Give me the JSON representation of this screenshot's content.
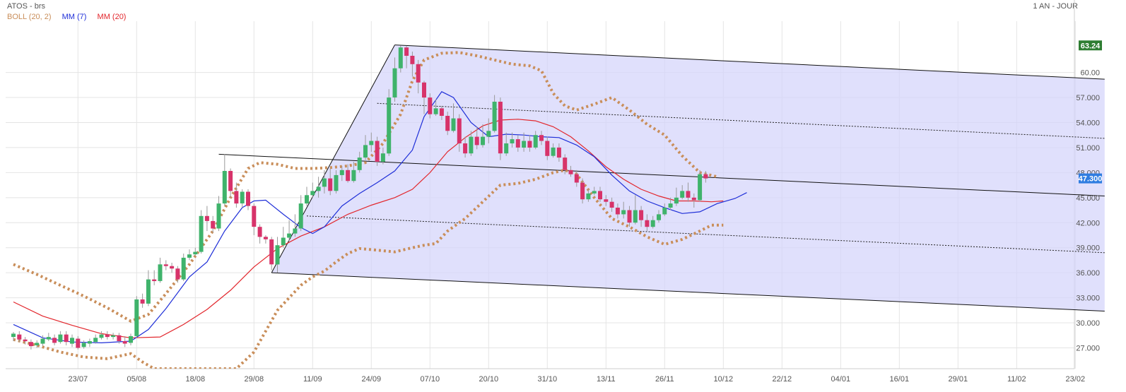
{
  "header": {
    "ticker": "ATOS - brs",
    "period": "1 AN - JOUR"
  },
  "legend": [
    {
      "label": "BOLL (20, 2)",
      "color": "#c98e5a"
    },
    {
      "label": "MM (7)",
      "color": "#1f2fd8"
    },
    {
      "label": "MM (20)",
      "color": "#e2262c"
    }
  ],
  "price_badges": {
    "high": {
      "label": "63.24",
      "value": 63.24,
      "color": "#2e7d32"
    },
    "last": {
      "label": "47.300",
      "value": 47.3,
      "color": "#2f7de1"
    }
  },
  "chart_data": {
    "type": "candlestick",
    "ylim": [
      24.5,
      65.3
    ],
    "y_ticks": [
      27,
      30,
      33,
      36,
      39,
      42,
      45,
      48,
      51,
      54,
      57,
      60
    ],
    "y_tick_labels": [
      "27.000",
      "30.000",
      "33.000",
      "36.000",
      "39.000",
      "42.000",
      "45.000",
      "48.000",
      "51.000",
      "54.000",
      "57.000",
      "60.00"
    ],
    "x_ticks": [
      {
        "label": "23/07",
        "i": 11
      },
      {
        "label": "05/08",
        "i": 21
      },
      {
        "label": "18/08",
        "i": 31
      },
      {
        "label": "29/08",
        "i": 41
      },
      {
        "label": "11/09",
        "i": 51
      },
      {
        "label": "24/09",
        "i": 61
      },
      {
        "label": "07/10",
        "i": 71
      },
      {
        "label": "20/10",
        "i": 81
      },
      {
        "label": "31/10",
        "i": 91
      },
      {
        "label": "13/11",
        "i": 101
      },
      {
        "label": "26/11",
        "i": 111
      },
      {
        "label": "10/12",
        "i": 121
      },
      {
        "label": "22/12",
        "i": 131
      },
      {
        "label": "04/01",
        "i": 141
      },
      {
        "label": "16/01",
        "i": 151
      },
      {
        "label": "29/01",
        "i": 161
      },
      {
        "label": "11/02",
        "i": 171
      },
      {
        "label": "23/02",
        "i": 181
      }
    ],
    "candles": [
      [
        28.3,
        28.7,
        27.8,
        28.9
      ],
      [
        28.6,
        28.0,
        27.7,
        29.0
      ],
      [
        28.0,
        27.8,
        27.4,
        28.3
      ],
      [
        27.7,
        27.2,
        26.8,
        28.0
      ],
      [
        27.3,
        27.6,
        27.0,
        27.9
      ],
      [
        27.5,
        28.1,
        27.2,
        28.5
      ],
      [
        28.0,
        28.3,
        27.8,
        28.8
      ],
      [
        28.2,
        27.6,
        27.3,
        28.6
      ],
      [
        27.7,
        28.6,
        27.5,
        29.0
      ],
      [
        28.6,
        27.7,
        27.3,
        29.0
      ],
      [
        27.5,
        28.2,
        27.1,
        28.6
      ],
      [
        28.1,
        27.0,
        26.8,
        28.4
      ],
      [
        27.1,
        27.6,
        26.9,
        27.9
      ],
      [
        27.5,
        27.8,
        27.1,
        28.1
      ],
      [
        27.7,
        28.2,
        27.5,
        28.6
      ],
      [
        28.2,
        28.6,
        28.0,
        29.0
      ],
      [
        28.6,
        28.3,
        28.0,
        29.0
      ],
      [
        28.3,
        28.5,
        28.0,
        28.8
      ],
      [
        28.5,
        27.8,
        27.5,
        28.8
      ],
      [
        27.8,
        27.5,
        27.1,
        28.4
      ],
      [
        27.6,
        28.4,
        27.3,
        28.7
      ],
      [
        28.4,
        32.8,
        28.2,
        33.2
      ],
      [
        32.8,
        32.3,
        31.8,
        33.5
      ],
      [
        32.3,
        35.2,
        32.0,
        36.3
      ],
      [
        35.2,
        35.0,
        34.5,
        36.3
      ],
      [
        35.0,
        37.0,
        34.8,
        37.8
      ],
      [
        37.0,
        36.8,
        36.3,
        37.5
      ],
      [
        36.8,
        36.5,
        36.0,
        37.2
      ],
      [
        36.5,
        35.2,
        34.8,
        36.8
      ],
      [
        35.2,
        37.8,
        35.0,
        38.3
      ],
      [
        37.8,
        38.2,
        37.5,
        38.8
      ],
      [
        38.2,
        38.5,
        38.0,
        39.0
      ],
      [
        38.5,
        42.8,
        38.3,
        43.5
      ],
      [
        42.8,
        42.2,
        41.0,
        44.0
      ],
      [
        42.2,
        41.3,
        40.8,
        42.8
      ],
      [
        41.3,
        44.3,
        41.0,
        45.2
      ],
      [
        44.3,
        48.2,
        44.0,
        50.2
      ],
      [
        48.2,
        45.8,
        45.0,
        48.5
      ],
      [
        45.8,
        44.3,
        43.8,
        46.8
      ],
      [
        44.3,
        45.7,
        43.8,
        46.0
      ],
      [
        45.7,
        44.0,
        43.5,
        46.0
      ],
      [
        44.0,
        41.5,
        40.5,
        44.3
      ],
      [
        41.5,
        40.3,
        39.5,
        41.8
      ],
      [
        40.3,
        40.0,
        39.5,
        40.5
      ],
      [
        40.0,
        37.0,
        36.3,
        40.3
      ],
      [
        37.0,
        39.3,
        36.0,
        40.3
      ],
      [
        39.3,
        40.2,
        39.0,
        41.5
      ],
      [
        40.2,
        40.7,
        39.8,
        42.3
      ],
      [
        40.7,
        41.3,
        40.3,
        43.0
      ],
      [
        41.3,
        44.3,
        41.0,
        45.3
      ],
      [
        44.3,
        45.3,
        44.0,
        46.3
      ],
      [
        45.3,
        45.8,
        45.0,
        46.8
      ],
      [
        45.8,
        46.3,
        45.0,
        47.5
      ],
      [
        46.3,
        47.3,
        45.5,
        48.3
      ],
      [
        47.3,
        45.8,
        45.3,
        48.5
      ],
      [
        45.8,
        47.7,
        45.5,
        48.3
      ],
      [
        47.7,
        48.3,
        47.0,
        48.8
      ],
      [
        48.3,
        47.0,
        46.8,
        49.0
      ],
      [
        47.0,
        48.3,
        46.8,
        49.3
      ],
      [
        48.3,
        49.8,
        48.0,
        50.5
      ],
      [
        49.8,
        51.3,
        49.5,
        52.5
      ],
      [
        51.3,
        51.8,
        50.5,
        52.8
      ],
      [
        51.8,
        49.3,
        48.8,
        52.3
      ],
      [
        49.3,
        50.3,
        49.0,
        51.0
      ],
      [
        50.3,
        57.0,
        50.0,
        58.0
      ],
      [
        57.0,
        60.5,
        56.5,
        61.8
      ],
      [
        60.5,
        63.0,
        60.0,
        63.2
      ],
      [
        63.0,
        62.0,
        60.5,
        63.2
      ],
      [
        62.0,
        61.0,
        59.5,
        62.5
      ],
      [
        61.0,
        58.8,
        57.5,
        61.5
      ],
      [
        58.8,
        57.0,
        55.0,
        59.0
      ],
      [
        57.0,
        55.0,
        54.5,
        57.5
      ],
      [
        55.0,
        55.7,
        54.8,
        56.8
      ],
      [
        55.7,
        54.8,
        54.3,
        56.0
      ],
      [
        54.8,
        53.0,
        52.5,
        55.3
      ],
      [
        53.0,
        54.5,
        52.8,
        56.3
      ],
      [
        54.5,
        51.5,
        50.5,
        55.0
      ],
      [
        51.5,
        50.3,
        49.8,
        52.3
      ],
      [
        50.3,
        52.3,
        50.0,
        53.0
      ],
      [
        52.3,
        51.3,
        50.8,
        53.5
      ],
      [
        51.3,
        52.3,
        51.0,
        53.8
      ],
      [
        52.3,
        53.0,
        51.5,
        54.5
      ],
      [
        53.0,
        56.5,
        52.8,
        57.3
      ],
      [
        56.5,
        50.3,
        49.5,
        57.0
      ],
      [
        50.3,
        51.5,
        50.0,
        52.8
      ],
      [
        51.5,
        52.0,
        51.0,
        52.8
      ],
      [
        52.0,
        51.0,
        50.5,
        52.5
      ],
      [
        51.0,
        51.8,
        50.5,
        52.8
      ],
      [
        51.8,
        51.0,
        50.5,
        52.5
      ],
      [
        51.0,
        52.5,
        50.8,
        53.0
      ],
      [
        52.5,
        51.8,
        51.3,
        53.0
      ],
      [
        51.8,
        50.0,
        49.5,
        52.3
      ],
      [
        50.0,
        51.0,
        49.8,
        51.5
      ],
      [
        51.0,
        49.8,
        49.3,
        51.5
      ],
      [
        49.8,
        48.3,
        47.8,
        50.2
      ],
      [
        48.3,
        47.8,
        47.5,
        48.8
      ],
      [
        47.8,
        46.8,
        46.3,
        48.3
      ],
      [
        46.8,
        44.8,
        44.3,
        47.3
      ],
      [
        44.8,
        45.5,
        44.5,
        46.0
      ],
      [
        45.5,
        45.8,
        45.3,
        46.3
      ],
      [
        45.8,
        44.8,
        44.5,
        46.3
      ],
      [
        44.8,
        44.5,
        44.0,
        45.3
      ],
      [
        44.5,
        43.8,
        43.3,
        45.0
      ],
      [
        43.8,
        43.0,
        42.5,
        44.3
      ],
      [
        43.0,
        43.5,
        42.5,
        44.5
      ],
      [
        43.5,
        42.0,
        41.5,
        44.0
      ],
      [
        42.0,
        43.5,
        41.8,
        45.3
      ],
      [
        43.5,
        42.3,
        41.5,
        44.0
      ],
      [
        42.3,
        41.5,
        41.0,
        43.0
      ],
      [
        41.5,
        42.3,
        41.3,
        42.8
      ],
      [
        42.3,
        43.0,
        42.0,
        43.5
      ],
      [
        43.0,
        43.8,
        42.8,
        44.3
      ],
      [
        43.8,
        44.3,
        43.5,
        45.0
      ],
      [
        44.3,
        45.0,
        44.0,
        46.2
      ],
      [
        45.0,
        45.8,
        44.8,
        46.5
      ],
      [
        45.8,
        45.0,
        44.5,
        46.8
      ],
      [
        45.0,
        44.7,
        43.8,
        45.5
      ],
      [
        44.7,
        47.8,
        44.5,
        48.3
      ],
      [
        47.8,
        47.3,
        46.8,
        48.2
      ]
    ],
    "mm7": [
      [
        0,
        29.8
      ],
      [
        5,
        28.2
      ],
      [
        10,
        27.7
      ],
      [
        15,
        27.6
      ],
      [
        20,
        27.8
      ],
      [
        23,
        29.2
      ],
      [
        26,
        31.7
      ],
      [
        30,
        35.5
      ],
      [
        33,
        37.3
      ],
      [
        36,
        41.0
      ],
      [
        39,
        43.8
      ],
      [
        41,
        44.6
      ],
      [
        43,
        44.7
      ],
      [
        46,
        43.0
      ],
      [
        49,
        41.4
      ],
      [
        51,
        40.7
      ],
      [
        53,
        41.5
      ],
      [
        56,
        44.0
      ],
      [
        59,
        45.5
      ],
      [
        62,
        46.8
      ],
      [
        65,
        48.2
      ],
      [
        68,
        50.7
      ],
      [
        70,
        54.7
      ],
      [
        73,
        57.7
      ],
      [
        75,
        57.0
      ],
      [
        78,
        54.0
      ],
      [
        81,
        52.3
      ],
      [
        84,
        52.6
      ],
      [
        87,
        52.5
      ],
      [
        90,
        52.3
      ],
      [
        93,
        52.2
      ],
      [
        96,
        51.3
      ],
      [
        99,
        49.9
      ],
      [
        102,
        47.7
      ],
      [
        105,
        45.8
      ],
      [
        108,
        44.6
      ],
      [
        111,
        43.8
      ],
      [
        114,
        43.1
      ],
      [
        117,
        43.3
      ],
      [
        120,
        44.3
      ],
      [
        123,
        44.9
      ],
      [
        125,
        45.6
      ]
    ],
    "mm20": [
      [
        0,
        32.5
      ],
      [
        5,
        30.8
      ],
      [
        10,
        29.7
      ],
      [
        15,
        28.7
      ],
      [
        20,
        28.2
      ],
      [
        25,
        28.3
      ],
      [
        29,
        29.8
      ],
      [
        33,
        31.6
      ],
      [
        37,
        33.9
      ],
      [
        41,
        36.7
      ],
      [
        45,
        38.9
      ],
      [
        49,
        40.4
      ],
      [
        53,
        41.5
      ],
      [
        57,
        43.0
      ],
      [
        61,
        44.1
      ],
      [
        65,
        45.0
      ],
      [
        68,
        46.0
      ],
      [
        71,
        48.0
      ],
      [
        74,
        50.5
      ],
      [
        77,
        52.2
      ],
      [
        80,
        53.6
      ],
      [
        83,
        54.3
      ],
      [
        86,
        54.4
      ],
      [
        89,
        54.2
      ],
      [
        92,
        53.5
      ],
      [
        95,
        52.3
      ],
      [
        98,
        50.6
      ],
      [
        101,
        48.7
      ],
      [
        104,
        47.2
      ],
      [
        107,
        46.0
      ],
      [
        110,
        45.2
      ],
      [
        113,
        44.6
      ],
      [
        116,
        44.6
      ],
      [
        119,
        44.5
      ],
      [
        121,
        44.6
      ]
    ],
    "boll_upper": [
      [
        0,
        37.0
      ],
      [
        4,
        35.8
      ],
      [
        8,
        34.5
      ],
      [
        12,
        33.2
      ],
      [
        16,
        31.8
      ],
      [
        20,
        30.2
      ],
      [
        23,
        31.0
      ],
      [
        26,
        33.5
      ],
      [
        30,
        37.0
      ],
      [
        34,
        41.0
      ],
      [
        37,
        45.0
      ],
      [
        40,
        48.5
      ],
      [
        42,
        49.2
      ],
      [
        45,
        49.0
      ],
      [
        48,
        48.5
      ],
      [
        51,
        48.5
      ],
      [
        54,
        48.6
      ],
      [
        57,
        48.8
      ],
      [
        60,
        49.2
      ],
      [
        63,
        51.5
      ],
      [
        66,
        55.0
      ],
      [
        68,
        59.0
      ],
      [
        70,
        61.5
      ],
      [
        73,
        62.3
      ],
      [
        76,
        62.4
      ],
      [
        79,
        62.0
      ],
      [
        82,
        61.5
      ],
      [
        85,
        61.0
      ],
      [
        88,
        60.8
      ],
      [
        90,
        60.2
      ],
      [
        92,
        57.5
      ],
      [
        94,
        56.0
      ],
      [
        96,
        55.5
      ],
      [
        99,
        56.2
      ],
      [
        102,
        57.0
      ],
      [
        105,
        55.5
      ],
      [
        108,
        53.8
      ],
      [
        111,
        52.5
      ],
      [
        114,
        50.0
      ],
      [
        117,
        48.0
      ],
      [
        120,
        47.5
      ]
    ],
    "boll_lower": [
      [
        0,
        28.0
      ],
      [
        4,
        27.3
      ],
      [
        8,
        26.5
      ],
      [
        12,
        25.9
      ],
      [
        16,
        25.7
      ],
      [
        20,
        26.3
      ],
      [
        22,
        25.3
      ],
      [
        24,
        24.5
      ],
      [
        38,
        24.5
      ],
      [
        41,
        26.5
      ],
      [
        43,
        29.0
      ],
      [
        45,
        31.5
      ],
      [
        47,
        33.0
      ],
      [
        49,
        34.5
      ],
      [
        51,
        35.5
      ],
      [
        53,
        36.2
      ],
      [
        55,
        37.3
      ],
      [
        57,
        38.3
      ],
      [
        59,
        38.9
      ],
      [
        62,
        38.7
      ],
      [
        65,
        38.5
      ],
      [
        68,
        39.0
      ],
      [
        70,
        39.3
      ],
      [
        72,
        39.5
      ],
      [
        74,
        41.0
      ],
      [
        77,
        42.5
      ],
      [
        80,
        44.5
      ],
      [
        83,
        46.5
      ],
      [
        86,
        46.7
      ],
      [
        89,
        47.2
      ],
      [
        92,
        48.0
      ],
      [
        94,
        48.3
      ],
      [
        96,
        47.8
      ],
      [
        99,
        45.0
      ],
      [
        102,
        42.5
      ],
      [
        105,
        41.5
      ],
      [
        108,
        40.3
      ],
      [
        111,
        39.4
      ],
      [
        114,
        40.0
      ],
      [
        117,
        41.0
      ],
      [
        119,
        41.7
      ],
      [
        121,
        41.7
      ]
    ],
    "channel": {
      "top": [
        [
          65,
          63.3
        ],
        [
          186,
          59.2
        ]
      ],
      "middle": [
        [
          35,
          50.2
        ],
        [
          186,
          45.2
        ]
      ],
      "bottom": [
        [
          44,
          36.0
        ],
        [
          186,
          31.4
        ]
      ],
      "left": [
        [
          44,
          36.0
        ],
        [
          65,
          63.3
        ]
      ],
      "dotted_upper": [
        [
          62,
          56.3
        ],
        [
          186,
          52.1
        ]
      ],
      "dotted_lower": [
        [
          50,
          42.8
        ],
        [
          186,
          38.4
        ]
      ]
    }
  }
}
